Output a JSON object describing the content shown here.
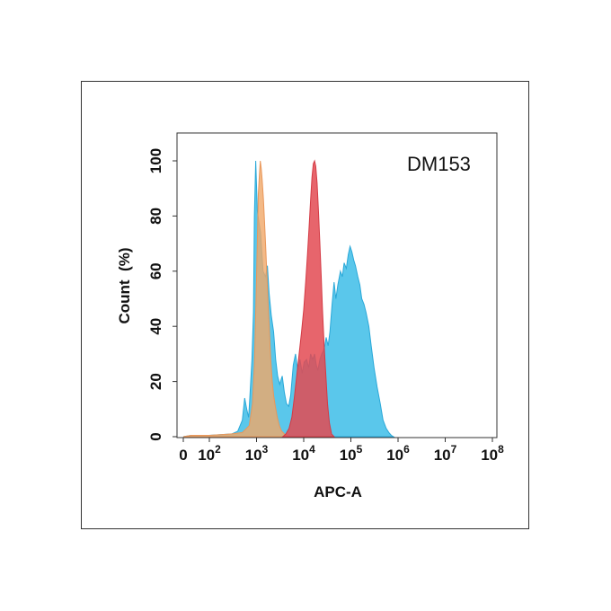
{
  "chart_data": {
    "type": "area",
    "title": "",
    "annotation": "DM153",
    "xlabel": "APC-A",
    "ylabel": "Count  (%)",
    "x_scale": "biexponential (0, then log10)",
    "xlim": [
      0,
      100000000
    ],
    "ylim": [
      0,
      105
    ],
    "grid": false,
    "legend": "none",
    "x_ticks": [
      {
        "value": 0,
        "base": "0",
        "exp": ""
      },
      {
        "value": 100,
        "base": "10",
        "exp": "2"
      },
      {
        "value": 1000,
        "base": "10",
        "exp": "3"
      },
      {
        "value": 10000,
        "base": "10",
        "exp": "4"
      },
      {
        "value": 100000,
        "base": "10",
        "exp": "5"
      },
      {
        "value": 1000000,
        "base": "10",
        "exp": "6"
      },
      {
        "value": 10000000,
        "base": "10",
        "exp": "7"
      },
      {
        "value": 100000000,
        "base": "10",
        "exp": "8"
      }
    ],
    "y_ticks": [
      "0",
      "20",
      "40",
      "60",
      "80",
      "100"
    ],
    "series": [
      {
        "color": "#3dbde8",
        "stroke": "#2aa8d8",
        "opacity": 0.85,
        "points": [
          [
            0,
            0
          ],
          [
            30,
            0.5
          ],
          [
            100,
            0.5
          ],
          [
            300,
            1
          ],
          [
            400,
            2
          ],
          [
            500,
            6
          ],
          [
            560,
            14
          ],
          [
            620,
            10
          ],
          [
            680,
            7
          ],
          [
            720,
            14
          ],
          [
            800,
            28
          ],
          [
            860,
            45
          ],
          [
            900,
            80
          ],
          [
            960,
            100
          ],
          [
            1040,
            82
          ],
          [
            1120,
            78
          ],
          [
            1220,
            74
          ],
          [
            1380,
            60
          ],
          [
            1550,
            58
          ],
          [
            1700,
            62
          ],
          [
            1850,
            52
          ],
          [
            2050,
            44
          ],
          [
            2300,
            38
          ],
          [
            2550,
            28
          ],
          [
            2800,
            22
          ],
          [
            3100,
            19
          ],
          [
            3500,
            22
          ],
          [
            3900,
            16
          ],
          [
            4300,
            12
          ],
          [
            4800,
            11
          ],
          [
            5300,
            15
          ],
          [
            6000,
            26
          ],
          [
            6700,
            30
          ],
          [
            7500,
            24
          ],
          [
            8300,
            28
          ],
          [
            9300,
            23
          ],
          [
            10200,
            27
          ],
          [
            11500,
            28
          ],
          [
            12800,
            25
          ],
          [
            14000,
            30
          ],
          [
            15500,
            28
          ],
          [
            17000,
            30
          ],
          [
            18500,
            26
          ],
          [
            20000,
            24
          ],
          [
            22000,
            28
          ],
          [
            24000,
            30
          ],
          [
            26000,
            31
          ],
          [
            28000,
            33
          ],
          [
            30000,
            36
          ],
          [
            33000,
            33
          ],
          [
            36000,
            38
          ],
          [
            40000,
            48
          ],
          [
            44000,
            56
          ],
          [
            48000,
            50
          ],
          [
            53000,
            55
          ],
          [
            60000,
            60
          ],
          [
            66000,
            58
          ],
          [
            72000,
            63
          ],
          [
            80000,
            61
          ],
          [
            88000,
            66
          ],
          [
            96000,
            69
          ],
          [
            105000,
            67
          ],
          [
            115000,
            64
          ],
          [
            125000,
            62
          ],
          [
            140000,
            58
          ],
          [
            155000,
            55
          ],
          [
            170000,
            50
          ],
          [
            190000,
            48
          ],
          [
            210000,
            45
          ],
          [
            240000,
            40
          ],
          [
            270000,
            33
          ],
          [
            310000,
            25
          ],
          [
            360000,
            18
          ],
          [
            420000,
            12
          ],
          [
            480000,
            6
          ],
          [
            560000,
            3
          ],
          [
            640000,
            1.5
          ],
          [
            720000,
            0.5
          ],
          [
            800000,
            0
          ]
        ]
      },
      {
        "color": "#f0a868",
        "stroke": "#e9975a",
        "opacity": 0.8,
        "points": [
          [
            0,
            0
          ],
          [
            30,
            0.5
          ],
          [
            100,
            0.5
          ],
          [
            300,
            1
          ],
          [
            500,
            1.5
          ],
          [
            700,
            4
          ],
          [
            820,
            12
          ],
          [
            900,
            26
          ],
          [
            970,
            48
          ],
          [
            1030,
            68
          ],
          [
            1090,
            88
          ],
          [
            1150,
            95
          ],
          [
            1200,
            100
          ],
          [
            1260,
            97
          ],
          [
            1320,
            93
          ],
          [
            1400,
            86
          ],
          [
            1480,
            78
          ],
          [
            1570,
            68
          ],
          [
            1660,
            58
          ],
          [
            1760,
            48
          ],
          [
            1880,
            38
          ],
          [
            2000,
            28
          ],
          [
            2150,
            20
          ],
          [
            2300,
            15
          ],
          [
            2500,
            11
          ],
          [
            2750,
            7
          ],
          [
            3050,
            4
          ],
          [
            3400,
            2
          ],
          [
            4000,
            0.8
          ],
          [
            5000,
            0
          ]
        ]
      },
      {
        "color": "#e34a52",
        "stroke": "#d43a44",
        "opacity": 0.85,
        "points": [
          [
            3600,
            0
          ],
          [
            4200,
            1
          ],
          [
            4900,
            3
          ],
          [
            5600,
            7
          ],
          [
            6300,
            14
          ],
          [
            7100,
            22
          ],
          [
            8000,
            30
          ],
          [
            9000,
            38
          ],
          [
            10000,
            46
          ],
          [
            11000,
            56
          ],
          [
            12000,
            66
          ],
          [
            13000,
            76
          ],
          [
            14000,
            86
          ],
          [
            15000,
            94
          ],
          [
            16000,
            99
          ],
          [
            17000,
            100
          ],
          [
            18000,
            98
          ],
          [
            19200,
            92
          ],
          [
            20500,
            82
          ],
          [
            22000,
            70
          ],
          [
            23500,
            58
          ],
          [
            25000,
            46
          ],
          [
            27000,
            34
          ],
          [
            29500,
            22
          ],
          [
            32000,
            12
          ],
          [
            35000,
            5
          ],
          [
            39000,
            1
          ],
          [
            44000,
            0
          ]
        ]
      }
    ]
  }
}
